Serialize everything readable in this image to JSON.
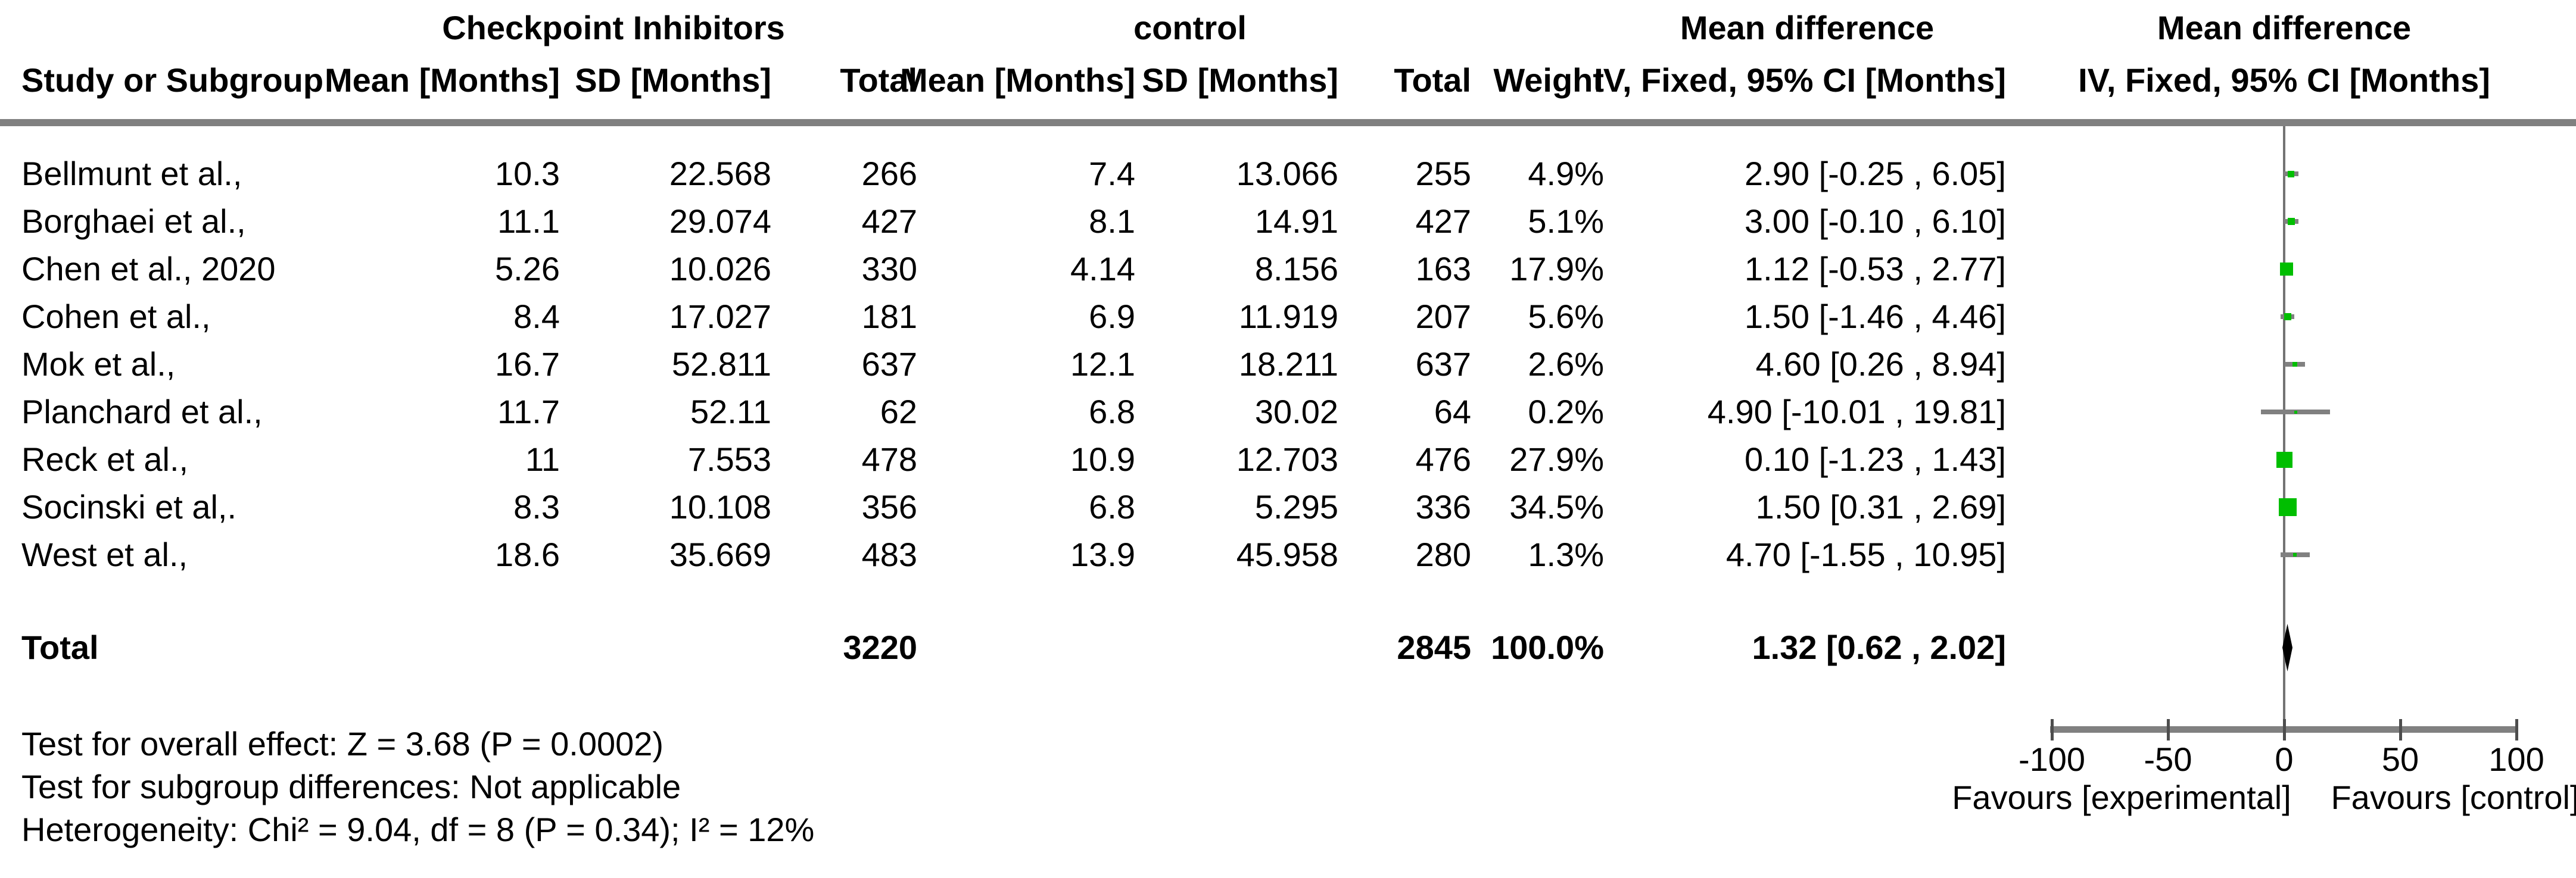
{
  "page": {
    "background": "#ffffff"
  },
  "colors": {
    "marker_green": "#00BE00",
    "ci_gray": "#808080",
    "axis_gray": "#808080",
    "tick_gray": "#4d4d4d",
    "zero_line_gray": "#737373",
    "diamond_black": "#000000",
    "text": "#000000"
  },
  "headers": {
    "group_experimental": "Checkpoint Inhibitors",
    "group_control": "control",
    "study": "Study or Subgroup",
    "exp_mean": "Mean [Months]",
    "exp_sd": "SD [Months]",
    "exp_total": "Total",
    "ctrl_mean": "Mean [Months]",
    "ctrl_sd": "SD [Months]",
    "ctrl_total": "Total",
    "weight": "Weight",
    "md_text_line1": "Mean difference",
    "md_text_line2": "IV, Fixed, 95% CI [Months]",
    "md_plot_line1": "Mean difference",
    "md_plot_line2": "IV, Fixed, 95% CI [Months]"
  },
  "footer": {
    "lines": [
      "Test for overall effect: Z = 3.68 (P = 0.0002)",
      "Test for subgroup differences: Not applicable",
      "Heterogeneity: Chi² = 9.04, df = 8 (P = 0.34); I² = 12%"
    ]
  },
  "chart_data": {
    "type": "scatter",
    "variant": "forest-plot (meta-analysis, mean difference)",
    "effect_measure": "Mean difference, IV, Fixed, 95% CI [Months]",
    "x_axis": {
      "min": -100,
      "max": 100,
      "ticks": [
        -100,
        -50,
        0,
        50,
        100
      ],
      "tick_labels": [
        "-100",
        "-50",
        "0",
        "50",
        "100"
      ],
      "favours_left": "Favours [experimental]",
      "favours_right": "Favours [control]"
    },
    "studies": [
      {
        "name": "Bellmunt et al.,",
        "exp_mean": "10.3",
        "exp_sd": "22.568",
        "exp_total": "266",
        "ctrl_mean": "7.4",
        "ctrl_sd": "13.066",
        "ctrl_total": "255",
        "weight": "4.9%",
        "weight_value": 4.9,
        "md": 2.9,
        "ci_low": -0.25,
        "ci_high": 6.05,
        "ci_text": "2.90 [-0.25 , 6.05]"
      },
      {
        "name": "Borghaei et al.,",
        "exp_mean": "11.1",
        "exp_sd": "29.074",
        "exp_total": "427",
        "ctrl_mean": "8.1",
        "ctrl_sd": "14.91",
        "ctrl_total": "427",
        "weight": "5.1%",
        "weight_value": 5.1,
        "md": 3.0,
        "ci_low": -0.1,
        "ci_high": 6.1,
        "ci_text": "3.00 [-0.10 , 6.10]"
      },
      {
        "name": "Chen et al., 2020",
        "exp_mean": "5.26",
        "exp_sd": "10.026",
        "exp_total": "330",
        "ctrl_mean": "4.14",
        "ctrl_sd": "8.156",
        "ctrl_total": "163",
        "weight": "17.9%",
        "weight_value": 17.9,
        "md": 1.12,
        "ci_low": -0.53,
        "ci_high": 2.77,
        "ci_text": "1.12 [-0.53 , 2.77]"
      },
      {
        "name": "Cohen et al.,",
        "exp_mean": "8.4",
        "exp_sd": "17.027",
        "exp_total": "181",
        "ctrl_mean": "6.9",
        "ctrl_sd": "11.919",
        "ctrl_total": "207",
        "weight": "5.6%",
        "weight_value": 5.6,
        "md": 1.5,
        "ci_low": -1.46,
        "ci_high": 4.46,
        "ci_text": "1.50 [-1.46 , 4.46]"
      },
      {
        "name": "Mok et al.,",
        "exp_mean": "16.7",
        "exp_sd": "52.811",
        "exp_total": "637",
        "ctrl_mean": "12.1",
        "ctrl_sd": "18.211",
        "ctrl_total": "637",
        "weight": "2.6%",
        "weight_value": 2.6,
        "md": 4.6,
        "ci_low": 0.26,
        "ci_high": 8.94,
        "ci_text": "4.60 [0.26 , 8.94]"
      },
      {
        "name": "Planchard et al.,",
        "exp_mean": "11.7",
        "exp_sd": "52.11",
        "exp_total": "62",
        "ctrl_mean": "6.8",
        "ctrl_sd": "30.02",
        "ctrl_total": "64",
        "weight": "0.2%",
        "weight_value": 0.2,
        "md": 4.9,
        "ci_low": -10.01,
        "ci_high": 19.81,
        "ci_text": "4.90 [-10.01 , 19.81]"
      },
      {
        "name": "Reck et al.,",
        "exp_mean": "11",
        "exp_sd": "7.553",
        "exp_total": "478",
        "ctrl_mean": "10.9",
        "ctrl_sd": "12.703",
        "ctrl_total": "476",
        "weight": "27.9%",
        "weight_value": 27.9,
        "md": 0.1,
        "ci_low": -1.23,
        "ci_high": 1.43,
        "ci_text": "0.10 [-1.23 , 1.43]"
      },
      {
        "name": "Socinski et al,.",
        "exp_mean": "8.3",
        "exp_sd": "10.108",
        "exp_total": "356",
        "ctrl_mean": "6.8",
        "ctrl_sd": "5.295",
        "ctrl_total": "336",
        "weight": "34.5%",
        "weight_value": 34.5,
        "md": 1.5,
        "ci_low": 0.31,
        "ci_high": 2.69,
        "ci_text": "1.50 [0.31 , 2.69]"
      },
      {
        "name": "West et al.,",
        "exp_mean": "18.6",
        "exp_sd": "35.669",
        "exp_total": "483",
        "ctrl_mean": "13.9",
        "ctrl_sd": "45.958",
        "ctrl_total": "280",
        "weight": "1.3%",
        "weight_value": 1.3,
        "md": 4.7,
        "ci_low": -1.55,
        "ci_high": 10.95,
        "ci_text": "4.70 [-1.55 , 10.95]"
      }
    ],
    "total": {
      "label": "Total",
      "exp_total": "3220",
      "ctrl_total": "2845",
      "weight": "100.0%",
      "md": 1.32,
      "ci_low": 0.62,
      "ci_high": 2.02,
      "ci_text": "1.32 [0.62 , 2.02]"
    }
  }
}
